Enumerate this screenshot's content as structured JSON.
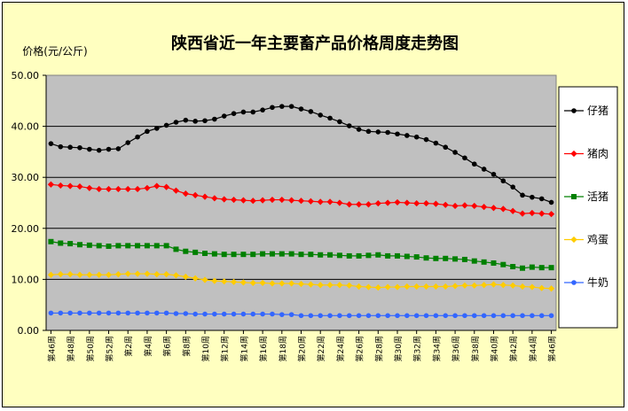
{
  "chart_data": {
    "type": "line",
    "title": "陕西省近一年主要畜产品价格周度走势图",
    "ylabel": "价格(元/公斤)",
    "xlabel": "",
    "ylim": [
      0,
      50
    ],
    "yticks": [
      "0.00",
      "10.00",
      "20.00",
      "30.00",
      "40.00",
      "50.00"
    ],
    "grid": true,
    "legend_position": "right",
    "plot_background": "#c0c0c0",
    "chart_background": "#ffffc0",
    "categories": [
      "第46周",
      "第47周",
      "第48周",
      "第49周",
      "第50周",
      "第51周",
      "第52周",
      "第1周",
      "第2周",
      "第3周",
      "第4周",
      "第5周",
      "第6周",
      "第7周",
      "第8周",
      "第9周",
      "第10周",
      "第11周",
      "第12周",
      "第13周",
      "第14周",
      "第15周",
      "第16周",
      "第17周",
      "第18周",
      "第19周",
      "第20周",
      "第21周",
      "第22周",
      "第23周",
      "第24周",
      "第25周",
      "第26周",
      "第27周",
      "第28周",
      "第29周",
      "第30周",
      "第31周",
      "第32周",
      "第33周",
      "第34周",
      "第35周",
      "第36周",
      "第37周",
      "第38周",
      "第39周",
      "第40周",
      "第41周",
      "第42周",
      "第43周",
      "第44周",
      "第45周",
      "第46周"
    ],
    "tick_labels": [
      "第46周",
      "第48周",
      "第50周",
      "第52周",
      "第2周",
      "第4周",
      "第6周",
      "第8周",
      "第10周",
      "第12周",
      "第14周",
      "第16周",
      "第18周",
      "第20周",
      "第22周",
      "第24周",
      "第26周",
      "第28周",
      "第30周",
      "第32周",
      "第34周",
      "第36周",
      "第38周",
      "第40周",
      "第42周",
      "第44周",
      "第46周"
    ],
    "series": [
      {
        "name": "仔猪",
        "color": "#000000",
        "marker": "circle",
        "values": [
          36.6,
          36.0,
          35.9,
          35.8,
          35.5,
          35.3,
          35.5,
          35.6,
          36.8,
          37.9,
          39.0,
          39.6,
          40.2,
          40.8,
          41.2,
          41.0,
          41.1,
          41.4,
          42.0,
          42.5,
          42.8,
          42.8,
          43.2,
          43.7,
          43.9,
          43.9,
          43.4,
          42.9,
          42.2,
          41.6,
          40.9,
          40.1,
          39.4,
          39.0,
          38.9,
          38.8,
          38.5,
          38.2,
          37.9,
          37.4,
          36.7,
          35.9,
          34.9,
          33.8,
          32.6,
          31.6,
          30.6,
          29.3,
          28.1,
          26.5,
          26.1,
          25.8,
          25.1
        ]
      },
      {
        "name": "猪肉",
        "color": "#ff0000",
        "marker": "diamond",
        "values": [
          28.6,
          28.4,
          28.3,
          28.2,
          27.9,
          27.7,
          27.7,
          27.7,
          27.7,
          27.7,
          27.9,
          28.3,
          28.1,
          27.4,
          26.8,
          26.5,
          26.2,
          25.9,
          25.7,
          25.6,
          25.5,
          25.4,
          25.5,
          25.6,
          25.6,
          25.5,
          25.4,
          25.3,
          25.2,
          25.2,
          25.0,
          24.7,
          24.7,
          24.7,
          24.9,
          25.0,
          25.1,
          25.0,
          24.9,
          24.9,
          24.8,
          24.6,
          24.4,
          24.5,
          24.4,
          24.2,
          24.0,
          23.8,
          23.4,
          22.9,
          23.0,
          22.9,
          22.8
        ]
      },
      {
        "name": "活猪",
        "color": "#008000",
        "marker": "square",
        "values": [
          17.4,
          17.1,
          17.0,
          16.8,
          16.7,
          16.6,
          16.5,
          16.6,
          16.6,
          16.6,
          16.6,
          16.6,
          16.6,
          15.9,
          15.5,
          15.3,
          15.1,
          15.0,
          14.9,
          14.9,
          14.9,
          14.9,
          15.0,
          15.0,
          15.0,
          15.0,
          14.9,
          14.9,
          14.8,
          14.8,
          14.7,
          14.6,
          14.6,
          14.7,
          14.8,
          14.6,
          14.6,
          14.5,
          14.4,
          14.2,
          14.1,
          14.1,
          14.0,
          13.9,
          13.6,
          13.4,
          13.2,
          12.9,
          12.5,
          12.2,
          12.4,
          12.3,
          12.3
        ]
      },
      {
        "name": "鸡蛋",
        "color": "#ffcc00",
        "marker": "diamond",
        "values": [
          10.9,
          11.0,
          11.0,
          10.9,
          10.9,
          10.9,
          10.9,
          11.0,
          11.1,
          11.1,
          11.1,
          11.0,
          11.0,
          10.8,
          10.5,
          10.2,
          9.9,
          9.7,
          9.6,
          9.5,
          9.4,
          9.3,
          9.3,
          9.2,
          9.2,
          9.2,
          9.1,
          9.0,
          8.9,
          8.9,
          8.9,
          8.8,
          8.6,
          8.5,
          8.4,
          8.5,
          8.5,
          8.6,
          8.6,
          8.6,
          8.6,
          8.6,
          8.7,
          8.8,
          8.8,
          8.9,
          9.0,
          8.9,
          8.8,
          8.6,
          8.5,
          8.3,
          8.2
        ]
      },
      {
        "name": "牛奶",
        "color": "#3366ff",
        "marker": "circle",
        "values": [
          3.4,
          3.4,
          3.4,
          3.4,
          3.4,
          3.4,
          3.4,
          3.4,
          3.4,
          3.4,
          3.4,
          3.4,
          3.4,
          3.3,
          3.3,
          3.2,
          3.2,
          3.2,
          3.2,
          3.2,
          3.2,
          3.2,
          3.2,
          3.2,
          3.1,
          3.1,
          2.9,
          2.9,
          2.9,
          2.9,
          2.9,
          2.9,
          2.9,
          2.9,
          2.9,
          2.9,
          2.9,
          2.9,
          2.9,
          2.9,
          2.9,
          2.9,
          2.9,
          2.9,
          2.9,
          2.9,
          2.9,
          2.9,
          2.9,
          2.9,
          2.9,
          2.9,
          2.9
        ]
      }
    ]
  }
}
